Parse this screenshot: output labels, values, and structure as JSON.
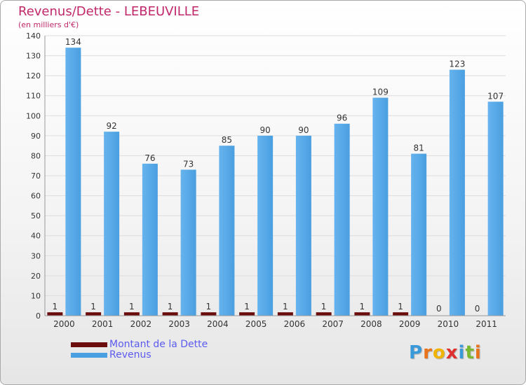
{
  "header": {
    "title": "Revenus/Dette - LEBEUVILLE",
    "subtitle": "(en milliers d'€)"
  },
  "colors": {
    "title": "#c0286a",
    "dette": "#6b0d0d",
    "revenus": "#4a9fe0",
    "revenus_light": "#66b3ee",
    "axis_text": "#333333",
    "grid": "#dddddd",
    "legend_text": "#5b5bf0"
  },
  "legend": {
    "items": [
      {
        "label": "Montant de la Dette",
        "color": "#6b0d0d"
      },
      {
        "label": "Revenus",
        "color": "#4a9fe0"
      }
    ]
  },
  "logo": {
    "letters": [
      {
        "ch": "P",
        "color": "#3a9ad9"
      },
      {
        "ch": "r",
        "color": "#e8731a"
      },
      {
        "ch": "o",
        "color": "#f0b400"
      },
      {
        "ch": "x",
        "color": "#e02f2f"
      },
      {
        "ch": "i",
        "color": "#3a9ad9"
      },
      {
        "ch": "t",
        "color": "#7ab830"
      },
      {
        "ch": "i",
        "color": "#e8731a"
      }
    ]
  },
  "chart_data": {
    "type": "bar",
    "title": "Revenus/Dette - LEBEUVILLE",
    "subtitle": "(en milliers d'€)",
    "categories": [
      "2000",
      "2001",
      "2002",
      "2003",
      "2004",
      "2005",
      "2006",
      "2007",
      "2008",
      "2009",
      "2010",
      "2011"
    ],
    "series": [
      {
        "name": "Montant de la Dette",
        "values": [
          1,
          1,
          1,
          1,
          1,
          1,
          1,
          1,
          1,
          1,
          0,
          0
        ]
      },
      {
        "name": "Revenus",
        "values": [
          134,
          92,
          76,
          73,
          85,
          90,
          90,
          96,
          109,
          81,
          123,
          107
        ]
      }
    ],
    "ylim": [
      0,
      140
    ],
    "yticks": [
      0,
      10,
      20,
      30,
      40,
      50,
      60,
      70,
      80,
      90,
      100,
      110,
      120,
      130,
      140
    ],
    "grid": true,
    "legend_position": "bottom-left"
  }
}
